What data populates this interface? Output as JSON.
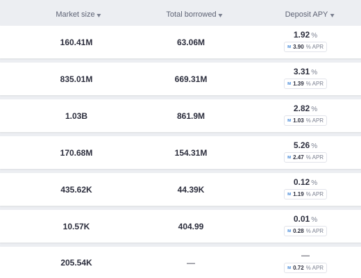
{
  "header": {
    "market_size": "Market size",
    "total_borrowed": "Total borrowed",
    "deposit_apy": "Deposit APY"
  },
  "rows": [
    {
      "market_size": "160.41M",
      "total_borrowed": "63.06M",
      "apy": "1.92",
      "apy_unit": "%",
      "apr": "3.90",
      "apr_unit": "% APR"
    },
    {
      "market_size": "835.01M",
      "total_borrowed": "669.31M",
      "apy": "3.31",
      "apy_unit": "%",
      "apr": "1.39",
      "apr_unit": "% APR"
    },
    {
      "market_size": "1.03B",
      "total_borrowed": "861.9M",
      "apy": "2.82",
      "apy_unit": "%",
      "apr": "1.03",
      "apr_unit": "% APR"
    },
    {
      "market_size": "170.68M",
      "total_borrowed": "154.31M",
      "apy": "5.26",
      "apy_unit": "%",
      "apr": "2.47",
      "apr_unit": "% APR"
    },
    {
      "market_size": "435.62K",
      "total_borrowed": "44.39K",
      "apy": "0.12",
      "apy_unit": "%",
      "apr": "1.19",
      "apr_unit": "% APR"
    },
    {
      "market_size": "10.57K",
      "total_borrowed": "404.99",
      "apy": "0.01",
      "apy_unit": "%",
      "apr": "0.28",
      "apr_unit": "% APR"
    },
    {
      "market_size": "205.54K",
      "total_borrowed": "—",
      "apy": "—",
      "apy_unit": "",
      "apr": "0.72",
      "apr_unit": "% APR"
    }
  ],
  "icons": {
    "sort": "caret-down-icon",
    "reward": "reward-token-icon"
  },
  "colors": {
    "background": "#eceef2",
    "row": "#ffffff",
    "text": "#2b2d3c",
    "muted": "#7b8090",
    "reward_icon": "#4a8cd8"
  }
}
